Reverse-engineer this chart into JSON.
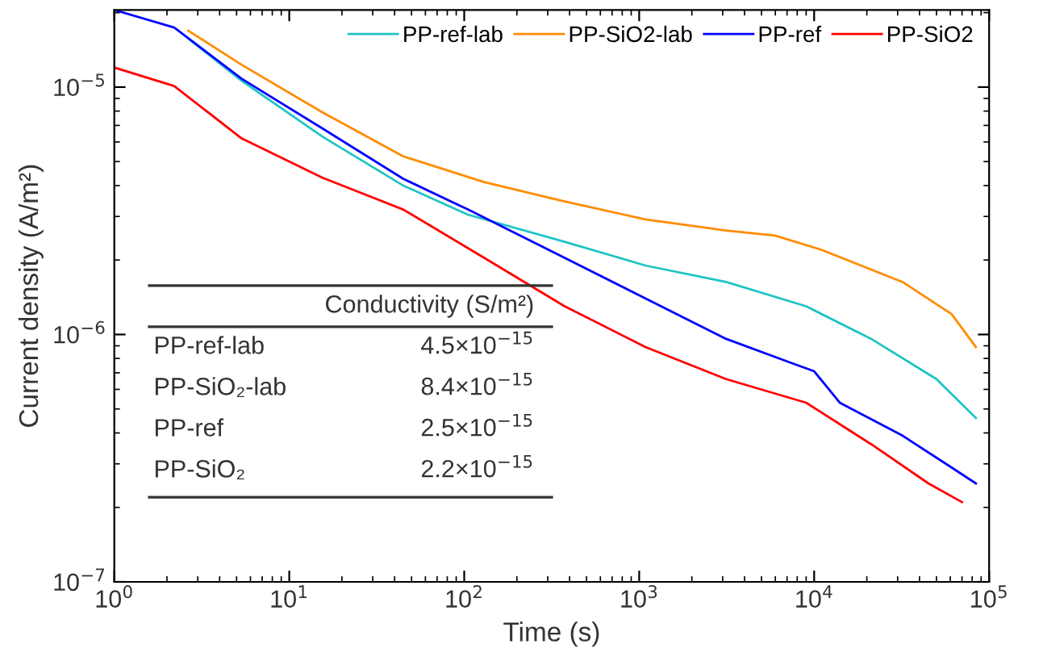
{
  "chart_data": {
    "type": "line",
    "xlabel": "Time (s)",
    "ylabel": "Current density (A/m²)",
    "log": "xy",
    "grid": false,
    "legend": "top right",
    "marker": "none",
    "line_style": "solid",
    "xlim": [
      1,
      100000
    ],
    "xticks": [
      {
        "value": 1,
        "label": "10$^{0}$"
      },
      {
        "value": 10,
        "label": "10$^{1}$"
      },
      {
        "value": 100,
        "label": "10$^{2}$"
      },
      {
        "value": 1000,
        "label": "10$^{3}$"
      },
      {
        "value": 10000,
        "label": "10$^{4}$"
      },
      {
        "value": 100000,
        "label": "10$^{5}$"
      }
    ],
    "ylim": [
      1e-07,
      2.05e-05
    ],
    "yticks": [
      {
        "value": 1e-07,
        "label": "10$^{−7}$"
      },
      {
        "value": 1e-06,
        "label": "10$^{−6}$"
      },
      {
        "value": 1e-05,
        "label": "10$^{−5}$"
      }
    ],
    "series": [
      {
        "name": "PP-ref-lab",
        "color": "#1fc4c4",
        "x": [
          2.65,
          5.35,
          15.5,
          44.8,
          105,
          375,
          1085,
          3140,
          9000,
          21200,
          50000,
          84000
        ],
        "values": [
          1.57e-05,
          1.06e-05,
          6.3e-06,
          4e-06,
          3.05e-06,
          2.37e-06,
          1.9e-06,
          1.63e-06,
          1.3e-06,
          9.6e-07,
          6.6e-07,
          4.6e-07
        ]
      },
      {
        "name": "PP-SiO2-lab",
        "color": "#ff8c00",
        "x": [
          2.65,
          5.35,
          15.5,
          44.8,
          130,
          375,
          1085,
          3140,
          5970,
          11000,
          32000,
          61000,
          84000
        ],
        "values": [
          1.69e-05,
          1.23e-05,
          7.9e-06,
          5.25e-06,
          4.13e-06,
          3.45e-06,
          2.92e-06,
          2.63e-06,
          2.51e-06,
          2.2e-06,
          1.63e-06,
          1.21e-06,
          8.9e-07
        ]
      },
      {
        "name": "PP-ref",
        "color": "#0000ff",
        "x": [
          1,
          2.2,
          5.35,
          15.5,
          44.8,
          105,
          375,
          1085,
          3140,
          7300,
          10000,
          14000,
          32000,
          61000,
          84000
        ],
        "values": [
          2.05e-05,
          1.74e-05,
          1.08e-05,
          6.8e-06,
          4.26e-06,
          3.2e-06,
          2.04e-06,
          1.4e-06,
          9.6e-07,
          7.7e-07,
          7.1e-07,
          5.3e-07,
          3.9e-07,
          2.9e-07,
          2.5e-07
        ]
      },
      {
        "name": "PP-SiO2",
        "color": "#ff0000",
        "x": [
          1,
          2.2,
          5.35,
          15.5,
          44.8,
          130,
          375,
          1085,
          3140,
          9000,
          21200,
          45000,
          70000
        ],
        "values": [
          1.2e-05,
          1.01e-05,
          6.2e-06,
          4.3e-06,
          3.2e-06,
          2.04e-06,
          1.3e-06,
          8.9e-07,
          6.6e-07,
          5.3e-07,
          3.6e-07,
          2.5e-07,
          2.1e-07
        ]
      }
    ],
    "annotations": [
      "Conductivity (S/m²)",
      "PP-ref-lab",
      "4.5×10$^{−15}$",
      "PP-SiO₂-lab",
      "8.4×10$^{−15}$",
      "PP-ref",
      "2.5×10$^{−15}$",
      "PP-SiO₂",
      "2.2×10$^{−15}$"
    ]
  }
}
